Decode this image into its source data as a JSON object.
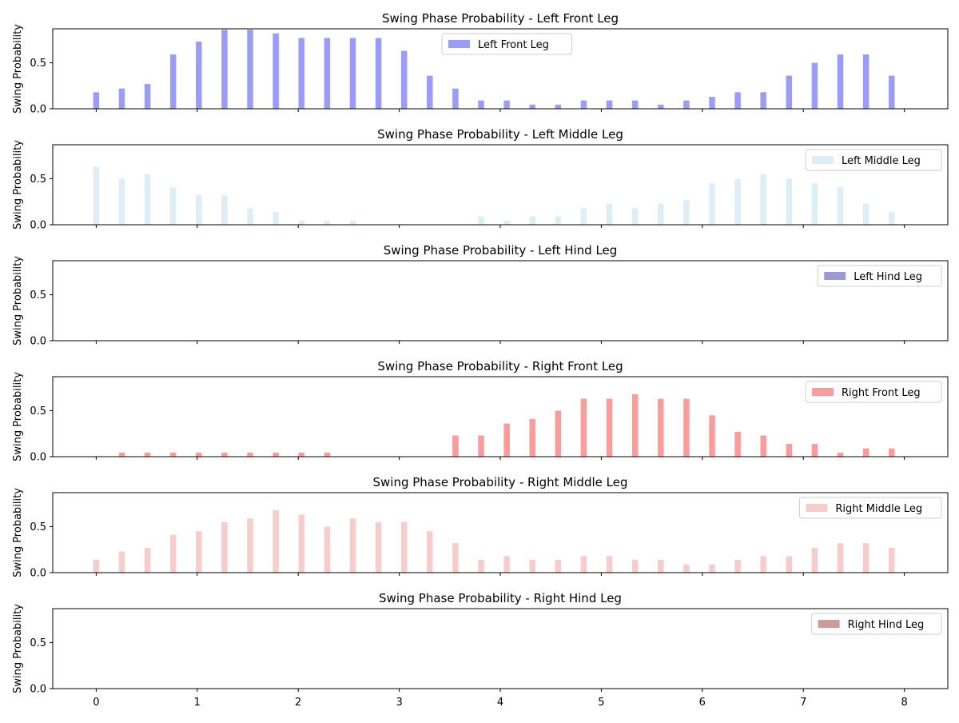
{
  "chart_data": {
    "type": "bar",
    "x": [
      0,
      0.254,
      0.508,
      0.762,
      1.016,
      1.27,
      1.524,
      1.778,
      2.032,
      2.286,
      2.54,
      2.794,
      3.048,
      3.302,
      3.556,
      3.81,
      4.064,
      4.318,
      4.572,
      4.826,
      5.08,
      5.334,
      5.588,
      5.842,
      6.096,
      6.35,
      6.604,
      6.858,
      7.112,
      7.366,
      7.62,
      7.874
    ],
    "xlim": [
      -0.43,
      8.43
    ],
    "xticks": [
      "0",
      "1",
      "2",
      "3",
      "4",
      "5",
      "6",
      "7",
      "8"
    ],
    "ylim": [
      0,
      0.87
    ],
    "yticks": [
      "0.0",
      "0.5"
    ],
    "ylabel": "Swing Probability",
    "legend_position": "top-right",
    "panels": [
      {
        "title": "Swing Phase Probability - Left Front Leg",
        "legend": "Left Front Leg",
        "color": "#9b9bfa",
        "legend_position": "top-center",
        "values": [
          0.18,
          0.22,
          0.27,
          0.59,
          0.73,
          0.86,
          0.86,
          0.82,
          0.77,
          0.77,
          0.77,
          0.77,
          0.63,
          0.36,
          0.22,
          0.09,
          0.09,
          0.045,
          0.045,
          0.09,
          0.09,
          0.09,
          0.045,
          0.09,
          0.13,
          0.18,
          0.18,
          0.36,
          0.5,
          0.59,
          0.59,
          0.36
        ]
      },
      {
        "title": "Swing Phase Probability - Left Middle Leg",
        "legend": "Left Middle Leg",
        "color": "#ddeef6",
        "values": [
          0.63,
          0.5,
          0.55,
          0.41,
          0.32,
          0.32,
          0.18,
          0.14,
          0.045,
          0.045,
          0.045,
          0,
          0,
          0,
          0,
          0.09,
          0.045,
          0.09,
          0.09,
          0.18,
          0.23,
          0.18,
          0.23,
          0.27,
          0.45,
          0.5,
          0.55,
          0.5,
          0.45,
          0.41,
          0.23,
          0.14
        ]
      },
      {
        "title": "Swing Phase Probability - Left Hind Leg",
        "legend": "Left Hind Leg",
        "color": "#9b9bd2",
        "values": [
          0,
          0,
          0,
          0,
          0,
          0,
          0,
          0,
          0,
          0,
          0,
          0,
          0,
          0,
          0,
          0,
          0,
          0,
          0,
          0,
          0,
          0,
          0,
          0,
          0,
          0,
          0,
          0,
          0,
          0,
          0,
          0
        ]
      },
      {
        "title": "Swing Phase Probability - Right Front Leg",
        "legend": "Right Front Leg",
        "color": "#ff9b9b",
        "values": [
          0,
          0.045,
          0.045,
          0.045,
          0.045,
          0.045,
          0.045,
          0.045,
          0.045,
          0.045,
          0,
          0,
          0,
          0,
          0.23,
          0.23,
          0.36,
          0.41,
          0.5,
          0.63,
          0.63,
          0.68,
          0.63,
          0.63,
          0.45,
          0.27,
          0.23,
          0.14,
          0.14,
          0.045,
          0.09,
          0.09
        ]
      },
      {
        "title": "Swing Phase Probability - Right Middle Leg",
        "legend": "Right Middle Leg",
        "color": "#f6cdcb",
        "values": [
          0.14,
          0.23,
          0.27,
          0.41,
          0.45,
          0.55,
          0.59,
          0.68,
          0.63,
          0.5,
          0.59,
          0.55,
          0.55,
          0.45,
          0.32,
          0.14,
          0.18,
          0.14,
          0.14,
          0.18,
          0.18,
          0.14,
          0.14,
          0.09,
          0.09,
          0.14,
          0.18,
          0.18,
          0.27,
          0.32,
          0.32,
          0.27
        ]
      },
      {
        "title": "Swing Phase Probability - Right Hind Leg",
        "legend": "Right Hind Leg",
        "color": "#d09a9b",
        "values": [
          0,
          0,
          0,
          0,
          0,
          0,
          0,
          0,
          0,
          0,
          0,
          0,
          0,
          0,
          0,
          0,
          0,
          0,
          0,
          0,
          0,
          0,
          0,
          0,
          0,
          0,
          0,
          0,
          0,
          0,
          0,
          0
        ]
      }
    ]
  }
}
